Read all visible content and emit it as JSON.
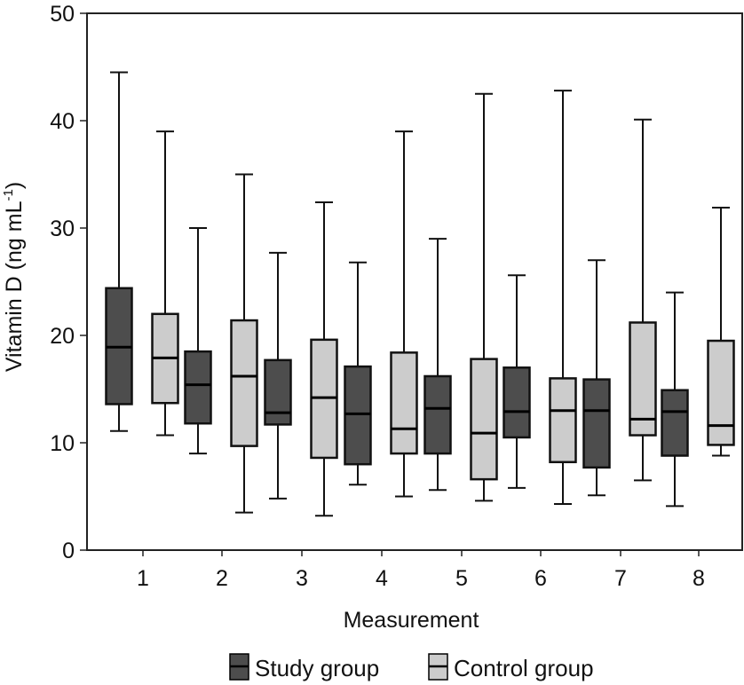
{
  "chart_data": {
    "type": "boxplot",
    "title": "",
    "xlabel": "Measurement",
    "ylabel": "Vitamin D (ng mL",
    "ylabel_superscript": "-1",
    "ylabel_close": ")",
    "ylim": [
      0,
      50
    ],
    "yticks": [
      0,
      10,
      20,
      30,
      40,
      50
    ],
    "categories": [
      "1",
      "2",
      "3",
      "4",
      "5",
      "6",
      "7",
      "8"
    ],
    "grid": false,
    "legend_position": "bottom-center",
    "series": [
      {
        "name": "Study group",
        "color": "#4d4d4d",
        "boxes": [
          {
            "min": 11.1,
            "q1": 13.6,
            "median": 18.9,
            "q3": 24.4,
            "max": 44.5
          },
          {
            "min": 9.0,
            "q1": 11.8,
            "median": 15.4,
            "q3": 18.5,
            "max": 30.0
          },
          {
            "min": 4.8,
            "q1": 11.7,
            "median": 12.8,
            "q3": 17.7,
            "max": 27.7
          },
          {
            "min": 6.1,
            "q1": 8.0,
            "median": 12.7,
            "q3": 17.1,
            "max": 26.8
          },
          {
            "min": 5.6,
            "q1": 9.0,
            "median": 13.2,
            "q3": 16.2,
            "max": 29.0
          },
          {
            "min": 5.8,
            "q1": 10.5,
            "median": 12.9,
            "q3": 17.0,
            "max": 25.6
          },
          {
            "min": 5.1,
            "q1": 7.7,
            "median": 13.0,
            "q3": 15.9,
            "max": 27.0
          },
          {
            "min": 4.1,
            "q1": 8.8,
            "median": 12.9,
            "q3": 14.9,
            "max": 24.0
          }
        ]
      },
      {
        "name": "Control group",
        "color": "#cccccc",
        "boxes": [
          {
            "min": 10.7,
            "q1": 13.7,
            "median": 17.9,
            "q3": 22.0,
            "max": 39.0
          },
          {
            "min": 3.5,
            "q1": 9.7,
            "median": 16.2,
            "q3": 21.4,
            "max": 35.0
          },
          {
            "min": 3.2,
            "q1": 8.6,
            "median": 14.2,
            "q3": 19.6,
            "max": 32.4
          },
          {
            "min": 5.0,
            "q1": 9.0,
            "median": 11.3,
            "q3": 18.4,
            "max": 39.0
          },
          {
            "min": 4.6,
            "q1": 6.6,
            "median": 10.9,
            "q3": 17.8,
            "max": 42.5
          },
          {
            "min": 4.3,
            "q1": 8.2,
            "median": 13.0,
            "q3": 16.0,
            "max": 42.8
          },
          {
            "min": 6.5,
            "q1": 10.7,
            "median": 12.2,
            "q3": 21.2,
            "max": 40.1
          },
          {
            "min": 8.8,
            "q1": 9.8,
            "median": 11.6,
            "q3": 19.5,
            "max": 31.9
          }
        ]
      }
    ]
  }
}
